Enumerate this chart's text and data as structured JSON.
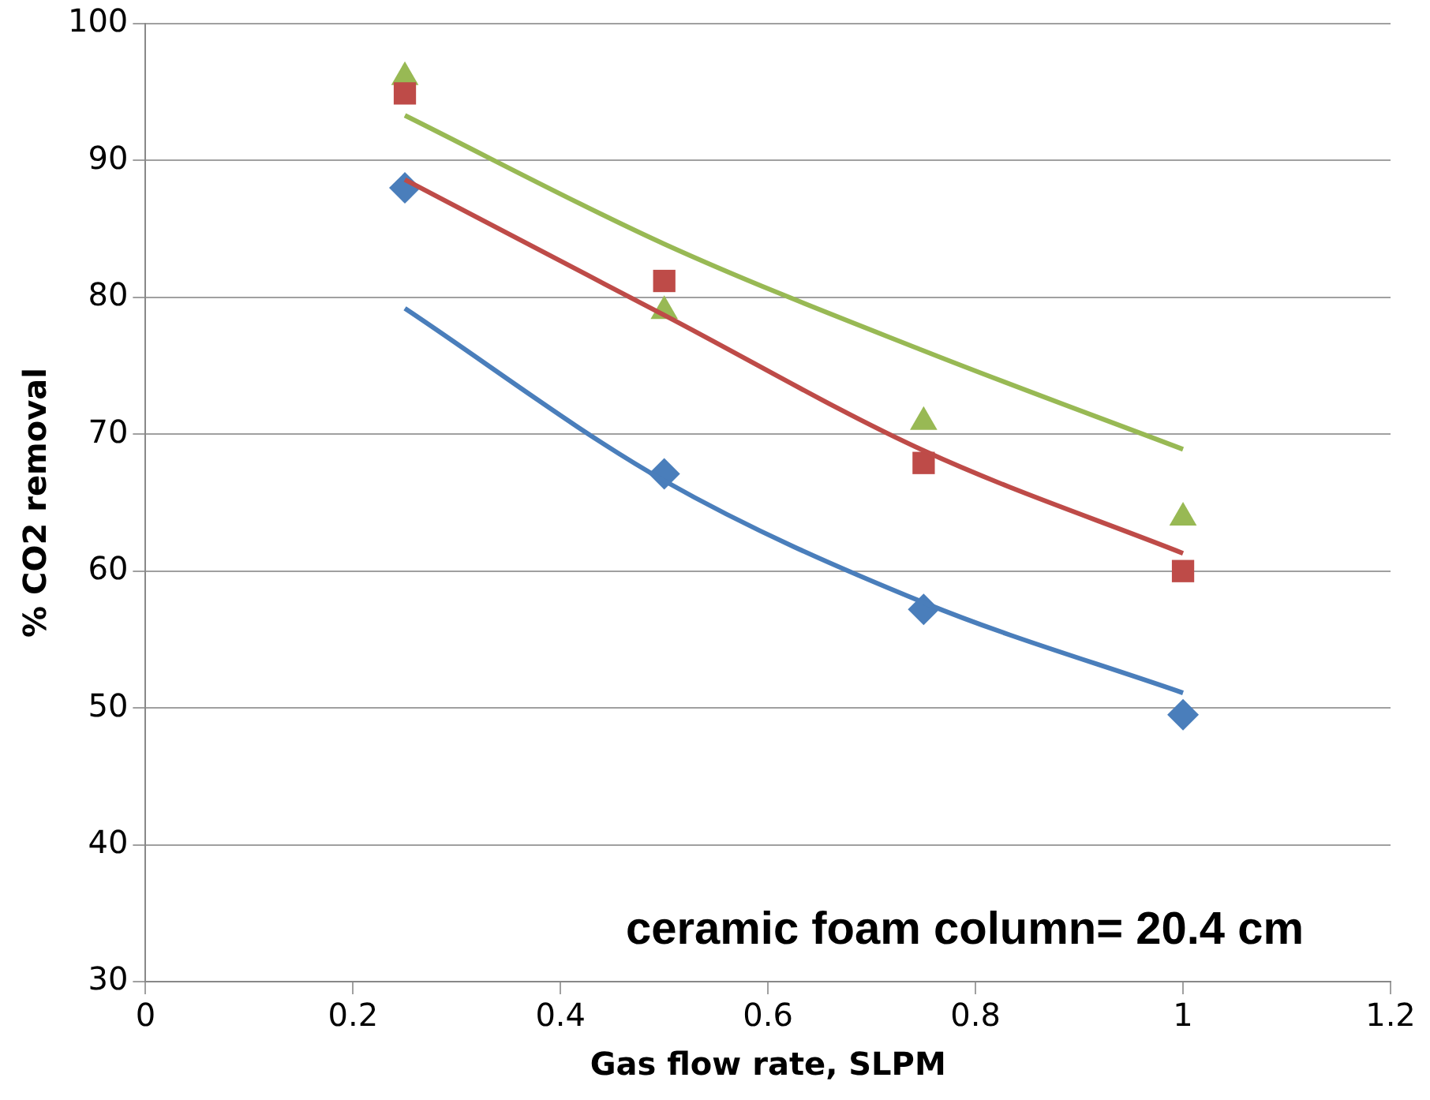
{
  "chart_data": {
    "type": "scatter",
    "xlabel": "Gas flow rate, SLPM",
    "ylabel": "% CO2 removal",
    "xlim": [
      0,
      1.2
    ],
    "xticks": [
      0,
      0.2,
      0.4,
      0.6,
      0.8,
      1,
      1.2
    ],
    "ylim": [
      30,
      100
    ],
    "yticks": [
      30,
      40,
      50,
      60,
      70,
      80,
      90,
      100
    ],
    "grid": "y",
    "annotations": [
      "ceramic foam column= 20.4 cm"
    ],
    "series": [
      {
        "type": "line",
        "color": "#4a7ebb",
        "marker": "none",
        "x": [
          0.25,
          0.5,
          0.75,
          1
        ],
        "values": [
          79.2,
          66.6,
          57.7,
          51.1
        ]
      },
      {
        "type": "line",
        "color": "#be4b48",
        "marker": "none",
        "x": [
          0.25,
          0.5,
          0.75,
          1
        ],
        "values": [
          88.6,
          78.7,
          68.8,
          61.3
        ]
      },
      {
        "type": "line",
        "color": "#98b954",
        "marker": "none",
        "x": [
          0.25,
          0.5,
          0.75,
          1
        ],
        "values": [
          93.3,
          83.9,
          76.1,
          68.9
        ]
      },
      {
        "type": "scatter",
        "color": "#4a7ebb",
        "marker": "diamond",
        "x": [
          0.25,
          0.5,
          0.75,
          1
        ],
        "values": [
          88,
          67.1,
          57.2,
          49.5
        ]
      },
      {
        "type": "scatter",
        "color": "#be4b48",
        "marker": "square",
        "x": [
          0.25,
          0.5,
          0.75,
          1
        ],
        "values": [
          94.9,
          81.2,
          67.9,
          60
        ]
      },
      {
        "type": "scatter",
        "color": "#98b954",
        "marker": "triangle",
        "x": [
          0.25,
          0.5,
          0.75,
          1
        ],
        "values": [
          96.1,
          79,
          70.9,
          63.9
        ]
      }
    ]
  }
}
